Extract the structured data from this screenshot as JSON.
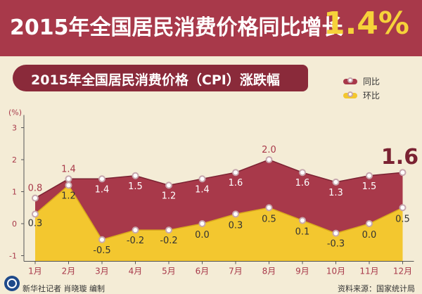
{
  "header": {
    "title": "2015年全国居民消费价格同比增长",
    "value": "1.4%"
  },
  "subtitle": "2015年全国居民消费价格（CPI）涨跌幅",
  "legend": [
    {
      "label": "同比",
      "color": "#a8394a"
    },
    {
      "label": "环比",
      "color": "#f3c72f"
    }
  ],
  "highlight": "1.6",
  "footer": {
    "credit": "新华社记者 肖晓璇 编制",
    "source": "资料来源：国家统计局"
  },
  "chart_data": {
    "type": "area",
    "x": [
      "1月",
      "2月",
      "3月",
      "4月",
      "5月",
      "6月",
      "7月",
      "8月",
      "9月",
      "10月",
      "11月",
      "12月"
    ],
    "ylabel": "(%)",
    "ylim": [
      -1,
      3
    ],
    "yticks": [
      -1,
      0,
      1,
      2,
      3
    ],
    "series": [
      {
        "name": "同比",
        "values": [
          0.8,
          1.4,
          1.4,
          1.5,
          1.2,
          1.4,
          1.6,
          2.0,
          1.6,
          1.3,
          1.5,
          1.6
        ]
      },
      {
        "name": "环比",
        "values": [
          0.3,
          1.2,
          -0.5,
          -0.2,
          -0.2,
          0.0,
          0.3,
          0.5,
          0.1,
          -0.3,
          0.0,
          0.5
        ]
      }
    ],
    "colors": {
      "yoy": "#a8394a",
      "mom": "#f3c72f"
    }
  }
}
